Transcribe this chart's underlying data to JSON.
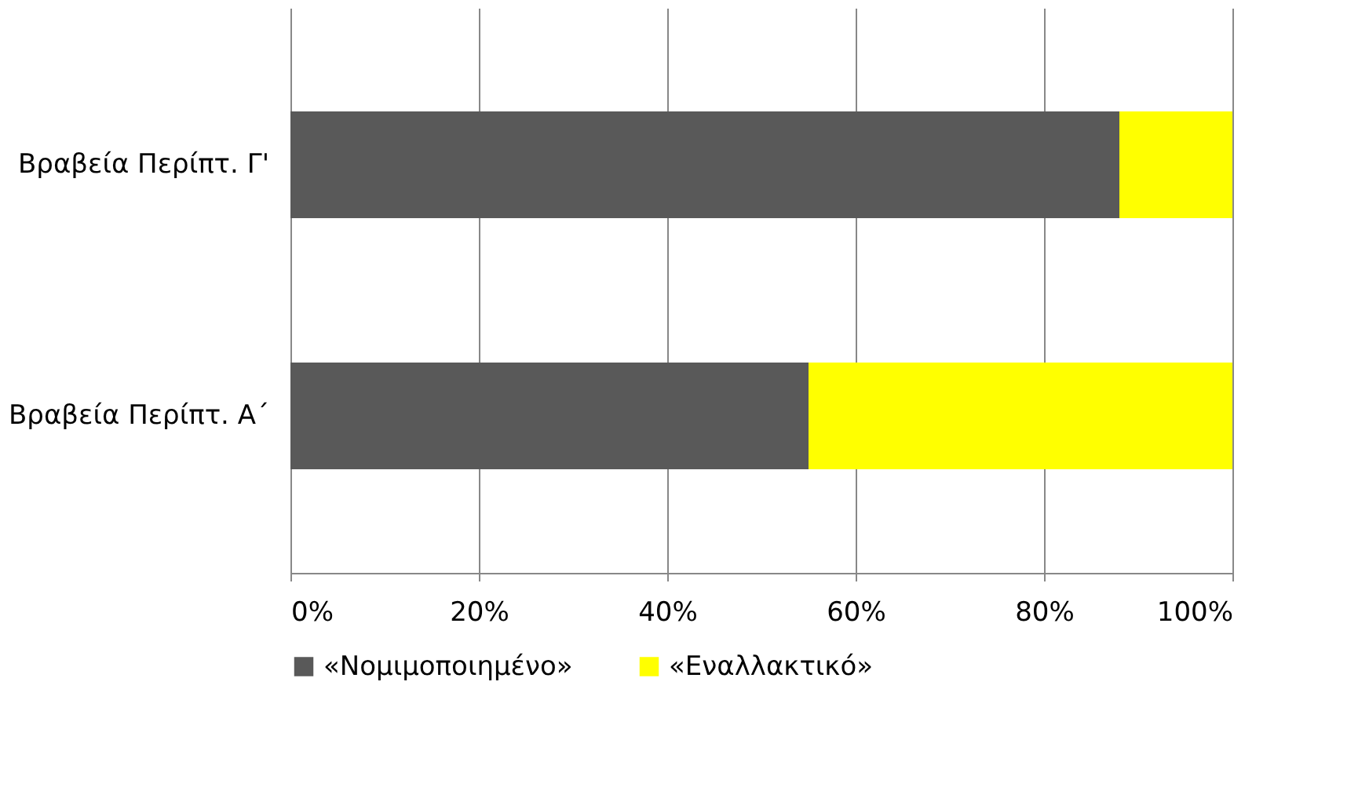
{
  "chart_data": {
    "type": "bar",
    "orientation": "horizontal",
    "stacked": true,
    "categories": [
      "Βραβεία Περίπτ. Γ'",
      "Βραβεία Περίπτ. Α΄"
    ],
    "series": [
      {
        "name": "«Νομιμοποιημένο»",
        "color": "#595959",
        "values": [
          88,
          55
        ]
      },
      {
        "name": "«Εναλλακτικό»",
        "color": "#ffff00",
        "values": [
          12,
          45
        ]
      }
    ],
    "xlim": [
      0,
      100
    ],
    "xticks": [
      {
        "value": 0,
        "label": "0%"
      },
      {
        "value": 20,
        "label": "20%"
      },
      {
        "value": 40,
        "label": "40%"
      },
      {
        "value": 60,
        "label": "60%"
      },
      {
        "value": 80,
        "label": "80%"
      },
      {
        "value": 100,
        "label": "100%"
      }
    ],
    "grid": "x",
    "legend": "bottom"
  }
}
